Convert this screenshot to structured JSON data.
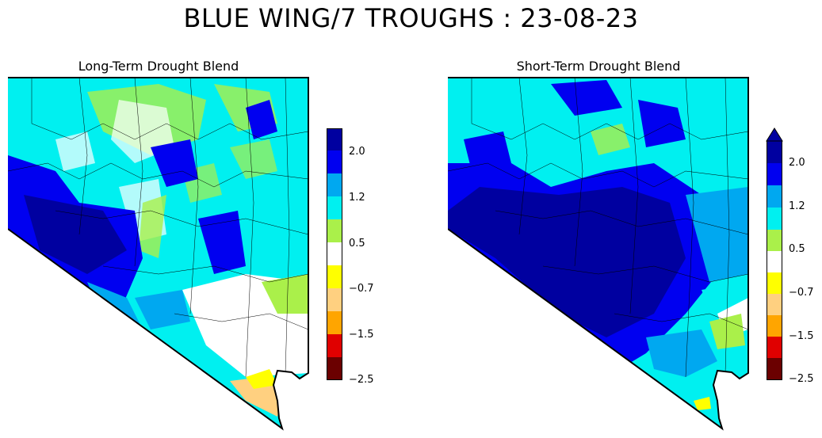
{
  "figure": {
    "title": "BLUE WING/7 TROUGHS : 23-08-23"
  },
  "palette": {
    "c_2.5": "#6b0000",
    "c_1.5": "#e00000",
    "c_1.0": "#ffa500",
    "c_0.7n": "#ffd080",
    "c_0.5n": "#ffff00",
    "white": "#ffffff",
    "c_0.5": "#aaf04a",
    "c_1.2": "#00f0f0",
    "c_1.6": "#00a8f0",
    "c_2.0": "#0000f0",
    "c_2.5p": "#0000a0"
  },
  "panels": [
    {
      "title": "Long-Term Drought Blend",
      "colorbar": {
        "ticks": [
          "2.0",
          "1.2",
          "0.5",
          "−0.7",
          "−1.5",
          "−2.5"
        ],
        "extend_top": false
      }
    },
    {
      "title": "Short-Term Drought Blend",
      "colorbar": {
        "ticks": [
          "2.0",
          "1.2",
          "0.5",
          "−0.7",
          "−1.5",
          "−2.5"
        ],
        "extend_top": true
      }
    }
  ]
}
